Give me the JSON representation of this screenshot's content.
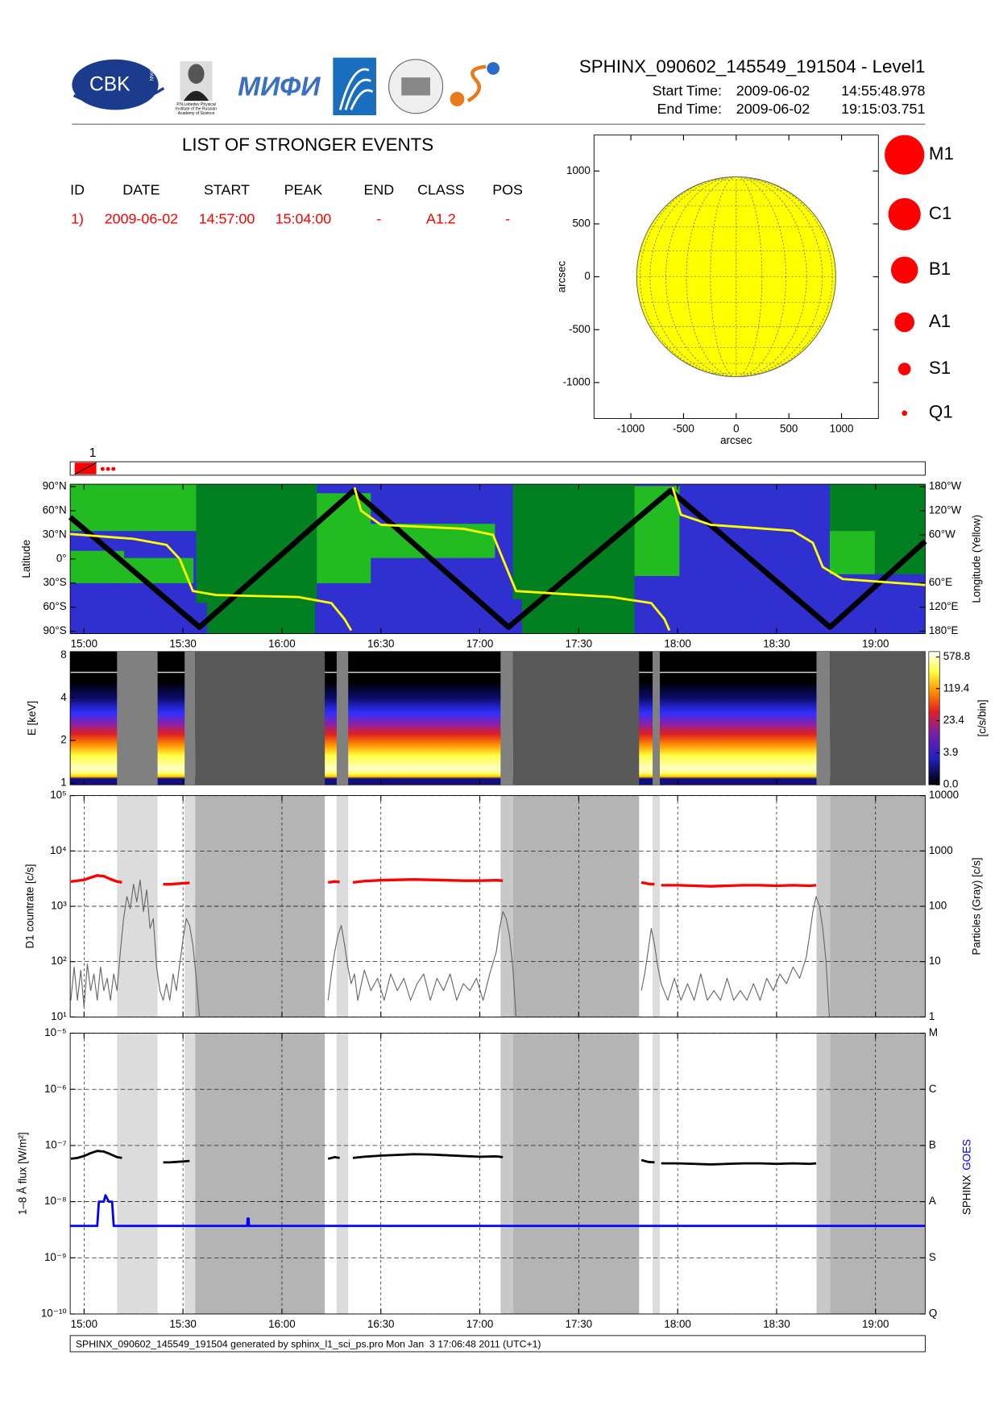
{
  "header": {
    "title": "SPHINX_090602_145549_191504 - Level1",
    "start_label": "Start Time:",
    "start_date": "2009-06-02",
    "start_time": "14:55:48.978",
    "end_label": "End Time:",
    "end_date": "2009-06-02",
    "end_time": "19:15:03.751"
  },
  "logos": {
    "cbk": "CBK",
    "pan": "PAN",
    "lebedev": [
      "P.N.Lebedev Physical",
      "Institute of the Russian",
      "Academy of Science"
    ],
    "mifi": "МИФИ"
  },
  "events": {
    "title": "LIST OF STRONGER EVENTS",
    "columns": [
      "ID",
      "DATE",
      "START",
      "PEAK",
      "END",
      "CLASS",
      "POS"
    ],
    "rows": [
      [
        "1)",
        "2009-06-02",
        "14:57:00",
        "15:04:00",
        "-",
        "A1.2",
        "-"
      ]
    ]
  },
  "class_legend": [
    "M1",
    "C1",
    "B1",
    "A1",
    "S1",
    "Q1"
  ],
  "event_strip": {
    "label": "1"
  },
  "footer": "SPHINX_090602_145549_191504 generated by sphinx_l1_sci_ps.pro Mon Jan  3 17:06:48 2011 (UTC+1)",
  "chart_data": [
    {
      "type": "disk",
      "xlabel": "arcsec",
      "ylabel": "arcsec",
      "xlim": [
        -1350,
        1350
      ],
      "ylim": [
        -1340,
        1340
      ],
      "xticks": [
        -1000,
        -500,
        0,
        500,
        1000
      ],
      "yticks": [
        -1000,
        -500,
        0,
        500,
        1000
      ],
      "radius": 945,
      "color": "#ffff00"
    },
    {
      "type": "line",
      "ylabel": "Latitude",
      "y2label": "Longitude (Yellow)",
      "xlim": [
        895.8,
        1155.06
      ],
      "xticks": [
        {
          "value": 900,
          "label": "15:00"
        },
        {
          "value": 930,
          "label": "15:30"
        },
        {
          "value": 960,
          "label": "16:00"
        },
        {
          "value": 990,
          "label": "16:30"
        },
        {
          "value": 1020,
          "label": "17:00"
        },
        {
          "value": 1050,
          "label": "17:30"
        },
        {
          "value": 1080,
          "label": "18:00"
        },
        {
          "value": 1110,
          "label": "18:30"
        },
        {
          "value": 1140,
          "label": "19:00"
        }
      ],
      "ylim": [
        -93,
        93
      ],
      "yticks": [
        {
          "value": 90,
          "label": "90°N"
        },
        {
          "value": 60,
          "label": "60°N"
        },
        {
          "value": 30,
          "label": "30°N"
        },
        {
          "value": 0,
          "label": "0°"
        },
        {
          "value": -30,
          "label": "30°S"
        },
        {
          "value": -60,
          "label": "60°S"
        },
        {
          "value": -90,
          "label": "90°S"
        }
      ],
      "y2lim": [
        -186,
        186
      ],
      "y2ticks": [
        {
          "value": 180,
          "label": "180°W"
        },
        {
          "value": 120,
          "label": "120°W"
        },
        {
          "value": 60,
          "label": "60°W"
        },
        {
          "value": -60,
          "label": "60°E"
        },
        {
          "value": -120,
          "label": "120°E"
        },
        {
          "value": -180,
          "label": "180°E"
        }
      ],
      "series": [
        {
          "color": "#000000",
          "x": [
            895.8,
            935,
            981.8,
            1028.7,
            1077.8,
            1126.2,
            1155.06
          ],
          "values": [
            52,
            -85,
            85,
            -85,
            85,
            -85,
            22
          ]
        },
        {
          "color": "#ffff00",
          "axis": "y2",
          "x": [
            895.8,
            915,
            925,
            929,
            933,
            940,
            965,
            975,
            979,
            981,
            981.4,
            982,
            984,
            990,
            1015,
            1024,
            1027,
            1031,
            1060,
            1072,
            1076,
            1077.5,
            1077.9,
            1078.5,
            1081,
            1090,
            1115,
            1121,
            1124,
            1130,
            1155.06
          ],
          "values": [
            62,
            50,
            35,
            0,
            -80,
            -90,
            -95,
            -110,
            -150,
            -178,
            null,
            178,
            120,
            85,
            75,
            60,
            0,
            -80,
            -95,
            -110,
            -150,
            -178,
            null,
            178,
            110,
            85,
            70,
            40,
            -20,
            -50,
            -65
          ]
        }
      ]
    },
    {
      "type": "spectrogram",
      "ylabel": "E [keV]",
      "log": true,
      "xlim": [
        895.8,
        1155.06
      ],
      "xticks": [
        900,
        930,
        960,
        990,
        1020,
        1050,
        1080,
        1110,
        1140
      ],
      "ylim": [
        0.97,
        8.5
      ],
      "yticks": [
        1,
        2,
        4,
        8
      ],
      "colorbar": {
        "label": "[c/s/bin]",
        "lim": [
          0,
          578.8
        ],
        "scale": "log1p",
        "ticks": [
          578.8,
          119.4,
          23.4,
          3.9,
          {
            "value": 0,
            "label": "0.0"
          }
        ]
      },
      "shading": [
        {
          "start": 910,
          "end": 922.3,
          "color": "#808080"
        },
        {
          "start": 930.5,
          "end": 933.7,
          "color": "#808080"
        },
        {
          "start": 933.7,
          "end": 973,
          "color": "#585858"
        },
        {
          "start": 976.6,
          "end": 980.1,
          "color": "#808080"
        },
        {
          "start": 1026.3,
          "end": 1030.1,
          "color": "#808080"
        },
        {
          "start": 1030.1,
          "end": 1068.3,
          "color": "#585858"
        },
        {
          "start": 1072.4,
          "end": 1074.6,
          "color": "#808080"
        },
        {
          "start": 1122.1,
          "end": 1126.2,
          "color": "#808080"
        },
        {
          "start": 1126.2,
          "end": 1155.06,
          "color": "#585858"
        }
      ]
    },
    {
      "type": "line",
      "ylabel": "D1 countrate [c/s]",
      "y2label": "Particles (Gray) [c/s]",
      "log": true,
      "grid": true,
      "xlim": [
        895.8,
        1155.06
      ],
      "xticks": [
        900,
        930,
        960,
        990,
        1020,
        1050,
        1080,
        1110,
        1140
      ],
      "ylim": [
        10,
        100000
      ],
      "yticks": [
        {
          "value": 10,
          "label": "10¹"
        },
        {
          "value": 100,
          "label": "10²"
        },
        {
          "value": 1000,
          "label": "10³"
        },
        {
          "value": 10000,
          "label": "10⁴"
        },
        {
          "value": 100000,
          "label": "10⁵"
        }
      ],
      "y2lim": [
        1,
        10000
      ],
      "y2ticks": [
        1,
        10,
        100,
        1000,
        10000
      ],
      "shading": [
        {
          "start": 910,
          "end": 922.3,
          "color": "#dcdcdc"
        },
        {
          "start": 930.5,
          "end": 933.7,
          "color": "#dcdcdc"
        },
        {
          "start": 933.7,
          "end": 973,
          "color": "#b4b4b4"
        },
        {
          "start": 976.6,
          "end": 980.1,
          "color": "#dcdcdc"
        },
        {
          "start": 1026.3,
          "end": 1030.1,
          "color": "#c8c8c8"
        },
        {
          "start": 1030.1,
          "end": 1068.3,
          "color": "#b4b4b4"
        },
        {
          "start": 1072.4,
          "end": 1074.6,
          "color": "#dcdcdc"
        },
        {
          "start": 1122.1,
          "end": 1126.2,
          "color": "#c8c8c8"
        },
        {
          "start": 1126.2,
          "end": 1155.06,
          "color": "#b4b4b4"
        }
      ],
      "series": [
        {
          "color": "#666666",
          "axis": "y2",
          "x": [
            896,
            897,
            898,
            899,
            900,
            901,
            902,
            903,
            904,
            905,
            906,
            907,
            908,
            909,
            910,
            911,
            912,
            913,
            914,
            915,
            916,
            917,
            918,
            919,
            920,
            921,
            922,
            923,
            924,
            925,
            926,
            927,
            928,
            929,
            930,
            931,
            932,
            933,
            934,
            935,
            955,
            974,
            975,
            976,
            977,
            978,
            979,
            980,
            981,
            982,
            983,
            985,
            987,
            989,
            991,
            993,
            995,
            997,
            999,
            1001,
            1003,
            1005,
            1007,
            1009,
            1011,
            1013,
            1015,
            1017,
            1019,
            1021,
            1023,
            1025,
            1026,
            1027,
            1028,
            1029,
            1030,
            1031,
            1050,
            1069,
            1070,
            1071,
            1072,
            1073,
            1074,
            1075,
            1077,
            1079,
            1081,
            1083,
            1085,
            1087,
            1089,
            1091,
            1093,
            1095,
            1097,
            1099,
            1101,
            1103,
            1105,
            1107,
            1109,
            1111,
            1113,
            1115,
            1117,
            1119,
            1120,
            1121,
            1122,
            1123,
            1124,
            1125,
            1126
          ],
          "values": [
            2,
            8,
            2,
            7,
            1.5,
            9,
            3,
            6,
            2,
            8,
            3,
            5,
            2,
            6,
            3,
            15,
            60,
            150,
            90,
            250,
            120,
            300,
            80,
            200,
            40,
            60,
            8,
            3,
            2,
            4,
            2,
            6,
            3,
            9,
            25,
            60,
            45,
            20,
            5,
            1,
            null,
            2,
            6,
            15,
            30,
            45,
            20,
            8,
            4,
            6,
            2,
            7,
            3,
            5,
            2,
            6,
            3,
            5,
            2,
            4,
            6,
            2,
            5,
            3,
            6,
            2,
            4,
            3,
            5,
            2,
            6,
            15,
            40,
            80,
            60,
            30,
            8,
            1,
            null,
            3,
            6,
            15,
            40,
            20,
            8,
            4,
            2,
            5,
            2,
            4,
            2,
            6,
            2,
            3,
            2,
            5,
            2,
            3,
            2,
            4,
            2,
            5,
            3,
            6,
            4,
            8,
            5,
            12,
            30,
            80,
            150,
            100,
            40,
            10,
            1
          ]
        },
        {
          "color": "#ff0000",
          "x": [
            896,
            898,
            900,
            902,
            904,
            906,
            908,
            910,
            911.5,
            918,
            924,
            926,
            928,
            930,
            932,
            953,
            974,
            976,
            977.5,
            979.5,
            981.5,
            985,
            990,
            995,
            1000,
            1005,
            1010,
            1015,
            1020,
            1025,
            1027,
            1048,
            1069,
            1071,
            1073,
            1074,
            1075,
            1080,
            1085,
            1090,
            1095,
            1100,
            1105,
            1110,
            1115,
            1120,
            1122
          ],
          "values": [
            2800,
            2900,
            3000,
            3300,
            3600,
            3500,
            3100,
            2800,
            2700,
            null,
            2500,
            2500,
            2550,
            2600,
            2650,
            null,
            2700,
            2800,
            2750,
            null,
            2700,
            2850,
            2950,
            3000,
            3050,
            3000,
            2950,
            2900,
            2900,
            2950,
            2900,
            null,
            2700,
            2550,
            2500,
            null,
            2400,
            2400,
            2350,
            2300,
            2350,
            2400,
            2400,
            2350,
            2400,
            2350,
            2400
          ]
        }
      ]
    },
    {
      "type": "line",
      "ylabel": "1–8 Å flux [W/m²]",
      "log": true,
      "grid": true,
      "xlim": [
        895.8,
        1155.06
      ],
      "xticks": [
        {
          "value": 900,
          "label": "15:00"
        },
        {
          "value": 930,
          "label": "15:30"
        },
        {
          "value": 960,
          "label": "16:00"
        },
        {
          "value": 990,
          "label": "16:30"
        },
        {
          "value": 1020,
          "label": "17:00"
        },
        {
          "value": 1050,
          "label": "17:30"
        },
        {
          "value": 1080,
          "label": "18:00"
        },
        {
          "value": 1110,
          "label": "18:30"
        },
        {
          "value": 1140,
          "label": "19:00"
        }
      ],
      "ylim": [
        1e-10,
        1e-05
      ],
      "yticks": [
        {
          "value": 1e-10,
          "label": "10⁻¹⁰"
        },
        {
          "value": 1e-09,
          "label": "10⁻⁹"
        },
        {
          "value": 1e-08,
          "label": "10⁻⁸"
        },
        {
          "value": 1e-07,
          "label": "10⁻⁷"
        },
        {
          "value": 1e-06,
          "label": "10⁻⁶"
        },
        {
          "value": 1e-05,
          "label": "10⁻⁵"
        }
      ],
      "y2lim": [
        1e-10,
        1e-05
      ],
      "y2ticks": [
        {
          "value": 1e-10,
          "label": "Q"
        },
        {
          "value": 1e-09,
          "label": "S"
        },
        {
          "value": 1e-08,
          "label": "A"
        },
        {
          "value": 1e-07,
          "label": "B"
        },
        {
          "value": 1e-06,
          "label": "C"
        },
        {
          "value": 1e-05,
          "label": "M"
        }
      ],
      "shading": [
        {
          "start": 910,
          "end": 922.3,
          "color": "#dcdcdc"
        },
        {
          "start": 930.5,
          "end": 933.7,
          "color": "#dcdcdc"
        },
        {
          "start": 933.7,
          "end": 973,
          "color": "#b4b4b4"
        },
        {
          "start": 976.6,
          "end": 980.1,
          "color": "#dcdcdc"
        },
        {
          "start": 1026.3,
          "end": 1030.1,
          "color": "#c8c8c8"
        },
        {
          "start": 1030.1,
          "end": 1068.3,
          "color": "#b4b4b4"
        },
        {
          "start": 1072.4,
          "end": 1074.6,
          "color": "#dcdcdc"
        },
        {
          "start": 1122.1,
          "end": 1126.2,
          "color": "#c8c8c8"
        },
        {
          "start": 1126.2,
          "end": 1155.06,
          "color": "#b4b4b4"
        }
      ],
      "series": [
        {
          "name": "SPHINX",
          "color": "#000000",
          "x": [
            896,
            898,
            900,
            902,
            904,
            906,
            908,
            910,
            911.5,
            918,
            924,
            926,
            928,
            930,
            932,
            953,
            974,
            976,
            977.5,
            979.5,
            981.5,
            985,
            990,
            995,
            1000,
            1005,
            1010,
            1015,
            1020,
            1025,
            1027,
            1048,
            1069,
            1071,
            1073,
            1074,
            1075,
            1080,
            1085,
            1090,
            1095,
            1100,
            1105,
            1110,
            1115,
            1120,
            1122
          ],
          "values": [
            5.8e-08,
            6e-08,
            6.5e-08,
            7.3e-08,
            8e-08,
            7.8e-08,
            7e-08,
            6.2e-08,
            6e-08,
            null,
            5e-08,
            5e-08,
            5.1e-08,
            5.2e-08,
            5.3e-08,
            null,
            5.8e-08,
            6.2e-08,
            6e-08,
            null,
            6e-08,
            6.3e-08,
            6.6e-08,
            6.8e-08,
            7e-08,
            6.9e-08,
            6.7e-08,
            6.5e-08,
            6.3e-08,
            6.4e-08,
            6.2e-08,
            null,
            5.5e-08,
            5.1e-08,
            5e-08,
            null,
            4.8e-08,
            4.8e-08,
            4.7e-08,
            4.6e-08,
            4.7e-08,
            4.8e-08,
            4.8e-08,
            4.7e-08,
            4.8e-08,
            4.7e-08,
            4.8e-08
          ]
        },
        {
          "name": "GOES",
          "color": "#0000ff",
          "x": [
            895.8,
            904,
            904.5,
            906,
            906.5,
            907.5,
            908.5,
            909,
            949.5,
            949.6,
            949.9,
            950,
            1155.06
          ],
          "values": [
            3.7e-09,
            3.7e-09,
            1e-08,
            1e-08,
            1.3e-08,
            1e-08,
            1e-08,
            3.7e-09,
            3.7e-09,
            5e-09,
            5e-09,
            3.7e-09,
            3.7e-09
          ]
        }
      ]
    }
  ]
}
